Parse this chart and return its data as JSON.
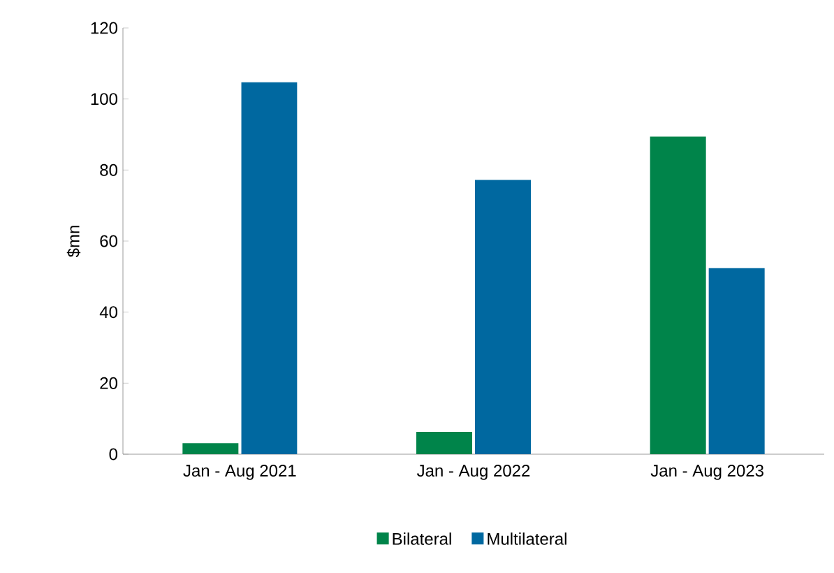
{
  "chart_data": {
    "type": "bar",
    "ylabel": "$mn",
    "categories": [
      "Jan - Aug 2021",
      "Jan - Aug 2022",
      "Jan - Aug 2023"
    ],
    "series": [
      {
        "name": "Bilateral",
        "color": "#00844a",
        "values": [
          3.1,
          6.3,
          89.4
        ]
      },
      {
        "name": "Multilateral",
        "color": "#0068a0",
        "values": [
          104.7,
          77.2,
          52.4
        ]
      }
    ],
    "ylim": [
      0,
      120
    ],
    "yticks": [
      0,
      20,
      40,
      60,
      80,
      100,
      120
    ],
    "legend": "bottom",
    "grid": false
  }
}
